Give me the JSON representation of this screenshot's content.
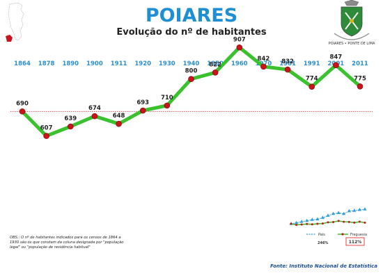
{
  "header": {
    "title": "POIARES",
    "subtitle": "Evolução do nº de habitantes",
    "crest_text": "POIARES • PONTE DE LIMA"
  },
  "footnote": {
    "lines": [
      "OBS.: O nº de habitantes indicados para os censos de 1864 a",
      "1930 são os que constam da coluna designada por \"população",
      "legal\" ou \"população de residência habitual\""
    ]
  },
  "source": "Fonte: Instituto Nacional de Estatística",
  "mini_legend": {
    "country_label": "País",
    "parish_label": "Freguesia",
    "country_pct": "246%",
    "parish_pct": "112%"
  },
  "colors": {
    "title": "#1f8fd3",
    "year": "#2a8fd0",
    "line": "#39c12e",
    "marker": "#c8141a",
    "reference": "#e03030",
    "country": "#2d9fdc",
    "pct_box": "#e03030"
  },
  "chart_data": {
    "type": "line",
    "title": "Evolução do nº de habitantes",
    "categories": [
      "1864",
      "1878",
      "1890",
      "1900",
      "1911",
      "1920",
      "1930",
      "1940",
      "1950",
      "1960",
      "1970",
      "1981",
      "1991",
      "2001",
      "2011"
    ],
    "series": [
      {
        "values": [
          690,
          607,
          639,
          674,
          648,
          693,
          710,
          800,
          822,
          907,
          842,
          832,
          774,
          847,
          775
        ]
      }
    ],
    "reference_line": 690,
    "ylim": [
      500,
      950
    ],
    "grid": false
  }
}
